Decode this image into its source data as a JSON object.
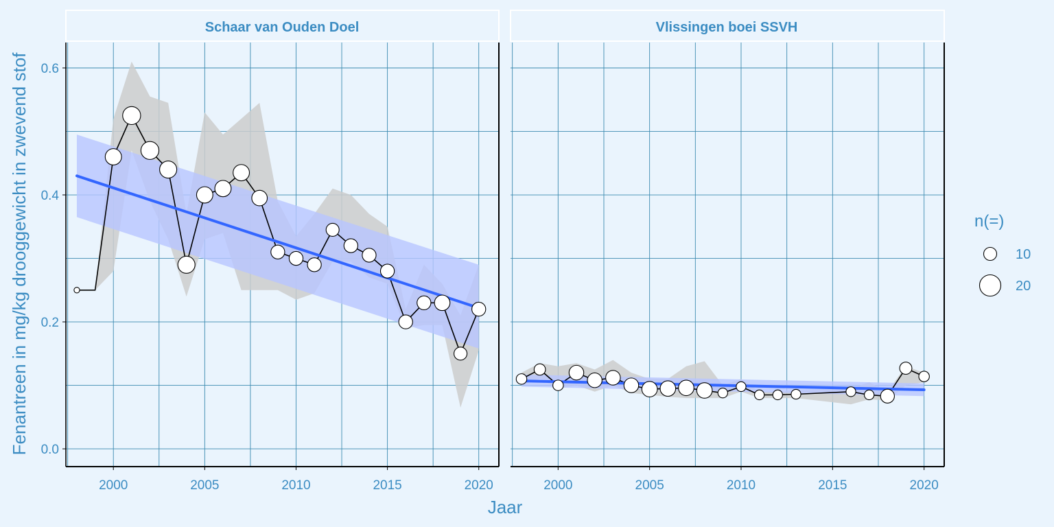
{
  "chart_data": {
    "type": "scatter",
    "xlabel": "Jaar",
    "ylabel": "Fenantreen in mg/kg drooggewicht in zwevend stof",
    "xlim": [
      1997.4,
      2021.1
    ],
    "ylim": [
      -0.028,
      0.64
    ],
    "x_ticks": [
      2000,
      2005,
      2010,
      2015,
      2020
    ],
    "y_ticks": [
      0.0,
      0.2,
      0.4,
      0.6
    ],
    "y_tick_labels": [
      "0.0",
      "0.2",
      "0.4",
      "0.6"
    ],
    "grid": true,
    "colors": {
      "background": "#eaf4fd",
      "grid": "#3b8ab0",
      "text": "#3b8cc2",
      "trend_line": "#3366ff",
      "trend_band": "#b8c5ff",
      "range_band": "#cccccc",
      "points_fill": "#ffffff",
      "points_stroke": "#000000"
    },
    "legend": {
      "title": "n(=)",
      "position": "right",
      "entries": [
        {
          "label": "10",
          "n": 10
        },
        {
          "label": "20",
          "n": 20
        }
      ]
    },
    "panels": [
      {
        "title": "Schaar van Ouden Doel",
        "series": {
          "x": [
            1998,
            1999,
            2000,
            2001,
            2002,
            2003,
            2004,
            2005,
            2006,
            2007,
            2008,
            2009,
            2010,
            2011,
            2012,
            2013,
            2014,
            2015,
            2016,
            2017,
            2018,
            2019,
            2020
          ],
          "y": [
            0.25,
            0.25,
            0.46,
            0.525,
            0.47,
            0.44,
            0.29,
            0.4,
            0.41,
            0.435,
            0.395,
            0.31,
            0.3,
            0.29,
            0.345,
            0.32,
            0.305,
            0.28,
            0.2,
            0.23,
            0.23,
            0.15,
            0.22
          ],
          "n": [
            1,
            null,
            14,
            16,
            16,
            15,
            15,
            14,
            14,
            14,
            13,
            11,
            11,
            11,
            10,
            11,
            11,
            11,
            11,
            11,
            13,
            10,
            11
          ]
        },
        "range_band": {
          "x": [
            1998,
            1999,
            2000,
            2001,
            2002,
            2003,
            2004,
            2005,
            2006,
            2007,
            2008,
            2009,
            2010,
            2011,
            2012,
            2013,
            2014,
            2015,
            2016,
            2017,
            2018,
            2019,
            2020
          ],
          "low": [
            0.25,
            0.25,
            0.28,
            0.47,
            0.39,
            0.33,
            0.24,
            0.33,
            0.34,
            0.25,
            0.25,
            0.25,
            0.235,
            0.245,
            0.295,
            0.295,
            0.27,
            0.26,
            0.19,
            0.195,
            0.195,
            0.065,
            0.155
          ],
          "high": [
            0.25,
            0.25,
            0.52,
            0.61,
            0.555,
            0.545,
            0.37,
            0.53,
            0.495,
            0.52,
            0.545,
            0.39,
            0.335,
            0.37,
            0.41,
            0.4,
            0.37,
            0.35,
            0.22,
            0.29,
            0.26,
            0.21,
            0.29
          ]
        },
        "trend": {
          "x": [
            1998,
            2020
          ],
          "y": [
            0.43,
            0.222
          ],
          "band_low": [
            0.365,
            0.158
          ],
          "band_high": [
            0.495,
            0.29
          ]
        }
      },
      {
        "title": "Vlissingen boei SSVH",
        "series": {
          "x": [
            1998,
            1999,
            2000,
            2001,
            2002,
            2003,
            2004,
            2005,
            2006,
            2007,
            2008,
            2009,
            2010,
            2011,
            2012,
            2013,
            2016,
            2017,
            2018,
            2019,
            2020
          ],
          "y": [
            0.11,
            0.125,
            0.1,
            0.12,
            0.108,
            0.112,
            0.1,
            0.094,
            0.095,
            0.096,
            0.092,
            0.088,
            0.098,
            0.085,
            0.085,
            0.086,
            0.09,
            0.085,
            0.083,
            0.127,
            0.114
          ],
          "n": [
            7,
            8,
            7,
            12,
            12,
            12,
            12,
            13,
            13,
            13,
            13,
            6,
            6,
            6,
            6,
            6,
            6,
            6,
            11,
            9,
            7
          ]
        },
        "range_band": {
          "x": [
            1998,
            1999,
            2000,
            2001,
            2002,
            2003,
            2004,
            2005,
            2006,
            2007,
            2008,
            2009,
            2010,
            2011,
            2012,
            2013,
            2016,
            2017,
            2018,
            2019,
            2020
          ],
          "low": [
            0.1,
            0.11,
            0.095,
            0.1,
            0.09,
            0.1,
            0.088,
            0.085,
            0.082,
            0.08,
            0.08,
            0.08,
            0.09,
            0.08,
            0.08,
            0.08,
            0.07,
            0.078,
            0.076,
            0.1,
            0.105
          ],
          "high": [
            0.12,
            0.135,
            0.13,
            0.135,
            0.125,
            0.14,
            0.12,
            0.11,
            0.11,
            0.13,
            0.138,
            0.1,
            0.11,
            0.09,
            0.09,
            0.092,
            0.095,
            0.105,
            0.09,
            0.13,
            0.12
          ]
        },
        "trend": {
          "x": [
            1998,
            2020
          ],
          "y": [
            0.107,
            0.093
          ],
          "band_low": [
            0.098,
            0.083
          ],
          "band_high": [
            0.117,
            0.103
          ]
        }
      }
    ]
  }
}
